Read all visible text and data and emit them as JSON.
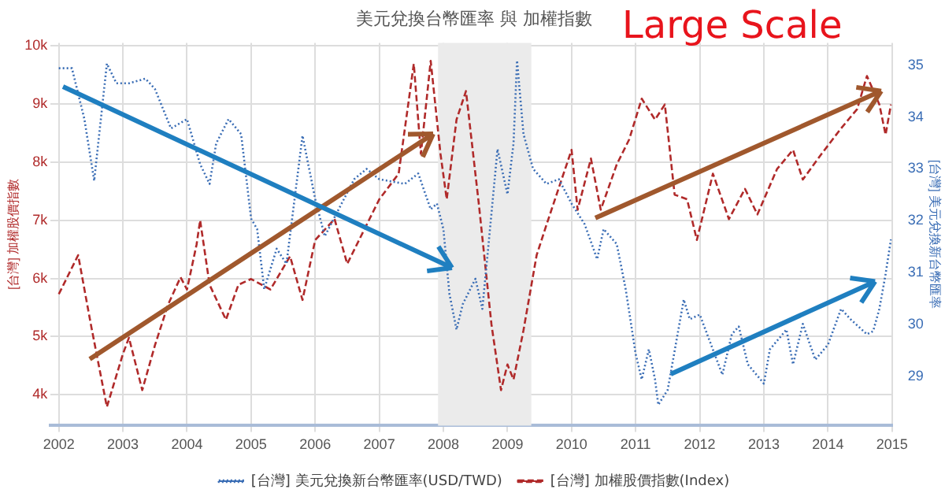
{
  "chart_data": {
    "type": "line",
    "title": "美元兌換台幣匯率 與 加權指數",
    "ylabel": "[台灣] 加權股價指數",
    "y2label": "[台灣] 美元兌換新台幣匯率",
    "annotations": [
      "Large Scale"
    ],
    "xlim": [
      "2001-11-15",
      "2015-01-01"
    ],
    "xticks": [
      "2002",
      "2003",
      "2004",
      "2005",
      "2006",
      "2007",
      "2008",
      "2009",
      "2010",
      "2011",
      "2012",
      "2013",
      "2014",
      "2015"
    ],
    "ylim": [
      3470,
      10050
    ],
    "yticks": [
      {
        "value": 4000,
        "label": "4k"
      },
      {
        "value": 5000,
        "label": "5k"
      },
      {
        "value": 6000,
        "label": "6k"
      },
      {
        "value": 7000,
        "label": "7k"
      },
      {
        "value": 8000,
        "label": "8k"
      },
      {
        "value": 9000,
        "label": "9k"
      },
      {
        "value": 10000,
        "label": "10k"
      }
    ],
    "y2lim": [
      28.05,
      35.43
    ],
    "y2ticks": [
      29,
      30,
      31,
      32,
      33,
      34,
      35
    ],
    "grid": true,
    "legend": "bottom",
    "marker": "none",
    "bands": [
      {
        "axis": "x",
        "from": "2007-12-01",
        "to": "2009-05-15",
        "color": "#ebebeb"
      }
    ],
    "series": [
      {
        "name": "[台灣] 美元兌換新台幣匯率(USD/TWD)",
        "color": "#3a6db5",
        "axis": "y2",
        "line_style": "dotted",
        "x": [
          "2002-01-01",
          "2002-03-15",
          "2002-05-25",
          "2002-07-20",
          "2002-10-01",
          "2002-11-25",
          "2003-02-05",
          "2003-05-08",
          "2003-07-01",
          "2003-10-01",
          "2004-01-01",
          "2004-03-15",
          "2004-05-08",
          "2004-06-15",
          "2004-08-25",
          "2004-11-05",
          "2005-01-01",
          "2005-02-05",
          "2005-03-15",
          "2005-05-25",
          "2005-07-20",
          "2005-10-20",
          "2006-01-01",
          "2006-02-25",
          "2006-08-10",
          "2006-10-20",
          "2007-01-01",
          "2007-05-25",
          "2007-08-10",
          "2007-10-20",
          "2007-11-25",
          "2008-01-01",
          "2008-02-05",
          "2008-03-15",
          "2008-04-20",
          "2008-07-01",
          "2008-08-10",
          "2008-09-15",
          "2008-11-05",
          "2009-01-01",
          "2009-02-05",
          "2009-02-25",
          "2009-04-01",
          "2009-05-25",
          "2009-08-10",
          "2009-10-20",
          "2010-01-01",
          "2010-03-15",
          "2010-05-25",
          "2010-07-01",
          "2010-09-15",
          "2010-11-05",
          "2011-01-01",
          "2011-02-05",
          "2011-03-15",
          "2011-04-20",
          "2011-05-08",
          "2011-07-01",
          "2011-10-01",
          "2011-11-05",
          "2012-01-01",
          "2012-05-08",
          "2012-07-01",
          "2012-08-10",
          "2012-10-01",
          "2013-01-01",
          "2013-02-05",
          "2013-05-08",
          "2013-06-15",
          "2013-08-10",
          "2013-10-20",
          "2014-01-01",
          "2014-03-15",
          "2014-05-08",
          "2014-08-10",
          "2014-09-15",
          "2014-10-20",
          "2014-11-25",
          "2014-12-25"
        ],
        "values": [
          34.94,
          34.94,
          33.96,
          32.77,
          35.03,
          34.65,
          34.65,
          34.74,
          34.54,
          33.78,
          33.96,
          33.09,
          32.71,
          33.49,
          33.96,
          33.67,
          32.04,
          31.84,
          30.68,
          31.46,
          31.17,
          33.64,
          32.42,
          31.7,
          32.8,
          33.0,
          32.8,
          32.71,
          32.91,
          32.22,
          32.33,
          31.84,
          30.59,
          29.9,
          30.39,
          30.88,
          30.3,
          31.55,
          33.38,
          32.51,
          33.49,
          35.09,
          33.67,
          33.0,
          32.71,
          32.8,
          32.33,
          31.93,
          31.26,
          31.84,
          31.55,
          30.68,
          29.43,
          28.94,
          29.52,
          28.94,
          28.45,
          28.74,
          30.48,
          30.1,
          30.19,
          29.03,
          29.81,
          29.96,
          29.23,
          28.86,
          29.52,
          29.9,
          29.23,
          30.01,
          29.32,
          29.61,
          30.3,
          30.1,
          29.81,
          29.87,
          30.3,
          30.97,
          31.64
        ]
      },
      {
        "name": "[台灣] 加權股價指數(Index)",
        "color": "#b02a2a",
        "axis": "y",
        "line_style": "dashed",
        "x": [
          "2002-01-01",
          "2002-04-20",
          "2002-07-01",
          "2002-10-01",
          "2003-01-01",
          "2003-02-05",
          "2003-04-20",
          "2003-07-01",
          "2003-09-15",
          "2003-11-25",
          "2004-01-01",
          "2004-02-25",
          "2004-03-15",
          "2004-05-08",
          "2004-08-10",
          "2004-10-20",
          "2005-01-01",
          "2005-04-20",
          "2005-08-10",
          "2005-10-20",
          "2006-01-01",
          "2006-04-20",
          "2006-07-01",
          "2007-01-01",
          "2007-04-20",
          "2007-07-15",
          "2007-08-25",
          "2007-10-20",
          "2007-12-15",
          "2008-01-20",
          "2008-03-15",
          "2008-05-08",
          "2008-07-20",
          "2008-10-01",
          "2008-11-25",
          "2009-01-01",
          "2009-02-05",
          "2009-04-01",
          "2009-06-15",
          "2009-08-10",
          "2009-11-05",
          "2010-01-01",
          "2010-02-05",
          "2010-04-20",
          "2010-06-15",
          "2010-09-15",
          "2010-11-25",
          "2011-02-05",
          "2011-04-20",
          "2011-06-15",
          "2011-08-10",
          "2011-10-20",
          "2011-12-15",
          "2012-03-15",
          "2012-06-15",
          "2012-09-15",
          "2012-11-25",
          "2013-03-15",
          "2013-06-15",
          "2013-08-10",
          "2013-11-25",
          "2014-03-15",
          "2014-06-15",
          "2014-08-10",
          "2014-10-20",
          "2014-11-25",
          "2014-12-25"
        ],
        "values": [
          5730,
          6400,
          5210,
          3790,
          4700,
          4980,
          4080,
          4850,
          5550,
          6020,
          5810,
          6580,
          7000,
          5890,
          5290,
          5890,
          5990,
          5810,
          6380,
          5630,
          6660,
          7020,
          6250,
          7360,
          7800,
          9690,
          8140,
          9740,
          8140,
          7360,
          8730,
          9220,
          7290,
          5210,
          4080,
          4520,
          4260,
          5110,
          6400,
          6920,
          7700,
          8210,
          7180,
          8060,
          7180,
          7960,
          8390,
          9090,
          8730,
          8990,
          7440,
          7360,
          6660,
          7800,
          7020,
          7540,
          7100,
          7880,
          8210,
          7700,
          8140,
          8580,
          8910,
          9480,
          8990,
          8470,
          8990
        ]
      }
    ]
  }
}
